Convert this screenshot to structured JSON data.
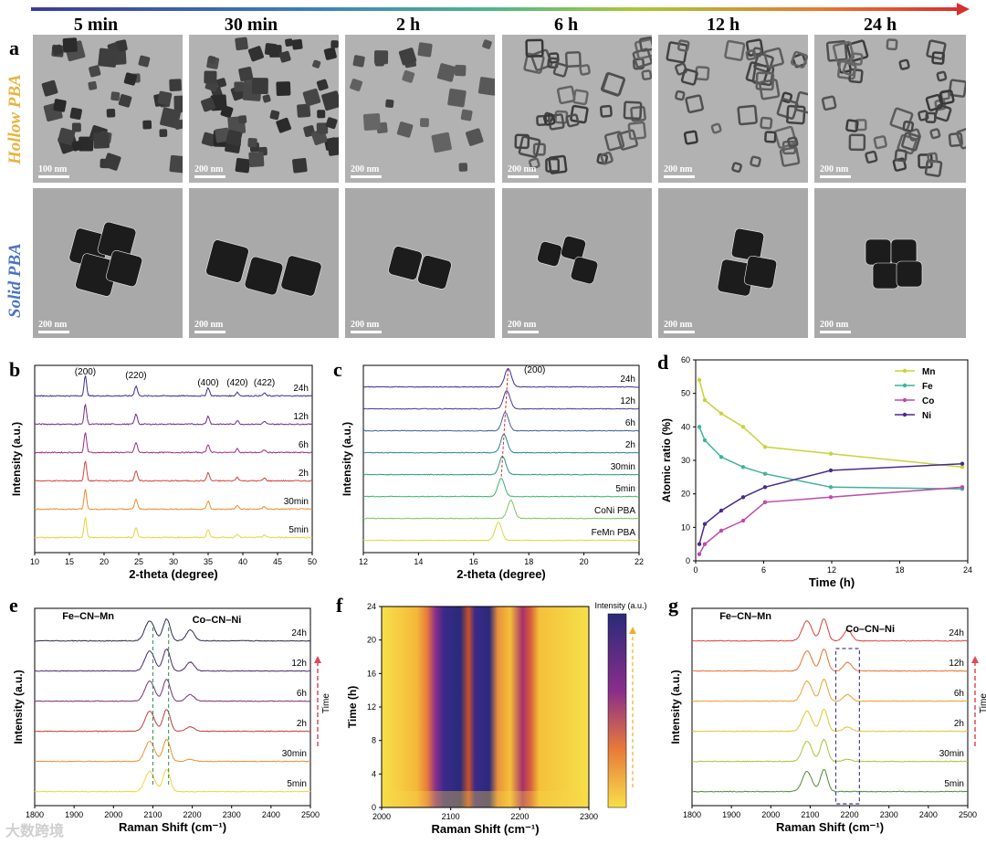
{
  "time_headers": [
    "5 min",
    "30 min",
    "2 h",
    "6 h",
    "12 h",
    "24 h"
  ],
  "panel_letters": {
    "a": "a",
    "b": "b",
    "c": "c",
    "d": "d",
    "e": "e",
    "f": "f",
    "g": "g"
  },
  "row_labels": {
    "hollow": "Hollow PBA",
    "solid": "Solid PBA"
  },
  "scale_bars": {
    "hollow": [
      "100 nm",
      "200 nm",
      "200 nm",
      "200 nm",
      "200 nm",
      "200 nm"
    ],
    "solid": [
      "200 nm",
      "200 nm",
      "200 nm",
      "200 nm",
      "200 nm",
      "200 nm"
    ]
  },
  "watermark": "大数跨境",
  "colors": {
    "hollow_label": "#e8b33a",
    "solid_label": "#4b73c2"
  },
  "chart_data": [
    {
      "id": "b",
      "type": "line",
      "xlabel": "2-theta (degree)",
      "ylabel": "Intensity (a.u.)",
      "xlim": [
        10,
        50
      ],
      "xticks": [
        "10",
        "15",
        "20",
        "25",
        "30",
        "35",
        "40",
        "45",
        "50"
      ],
      "series": [
        {
          "name": "24h",
          "color": "#3b2f8f"
        },
        {
          "name": "12h",
          "color": "#6b2d8e"
        },
        {
          "name": "6h",
          "color": "#9b2e86"
        },
        {
          "name": "2h",
          "color": "#d0453f"
        },
        {
          "name": "30min",
          "color": "#ee8a2e"
        },
        {
          "name": "5min",
          "color": "#e8d23b"
        }
      ],
      "peaks": [
        {
          "x": 17.3,
          "label": "(200)"
        },
        {
          "x": 24.6,
          "label": "(220)"
        },
        {
          "x": 35.0,
          "label": "(400)"
        },
        {
          "x": 39.2,
          "label": "(420)"
        },
        {
          "x": 43.1,
          "label": "(422)"
        }
      ]
    },
    {
      "id": "c",
      "type": "line",
      "xlabel": "2-theta (degree)",
      "ylabel": "Intensity (a.u.)",
      "xlim": [
        12,
        22
      ],
      "xticks": [
        "12",
        "14",
        "16",
        "18",
        "20",
        "22"
      ],
      "peak_label": "(200)",
      "series": [
        {
          "name": "24h",
          "color": "#3b2f8f",
          "peak": 17.25
        },
        {
          "name": "12h",
          "color": "#4a3a8c",
          "peak": 17.2
        },
        {
          "name": "6h",
          "color": "#3f5f99",
          "peak": 17.15
        },
        {
          "name": "2h",
          "color": "#2f8290",
          "peak": 17.1
        },
        {
          "name": "30min",
          "color": "#2a9a7a",
          "peak": 17.05
        },
        {
          "name": "5min",
          "color": "#3db36b",
          "peak": 17.0
        },
        {
          "name": "CoNi PBA",
          "color": "#7ec45a",
          "peak": 17.35
        },
        {
          "name": "FeMn PBA",
          "color": "#d8d83a",
          "peak": 16.9
        }
      ]
    },
    {
      "id": "d",
      "type": "line",
      "xlabel": "Time (h)",
      "ylabel": "Atomic ratio (%)",
      "xlim": [
        0,
        24
      ],
      "ylim": [
        0,
        60
      ],
      "xticks": [
        "0",
        "6",
        "12",
        "18",
        "24"
      ],
      "yticks": [
        "0",
        "10",
        "20",
        "30",
        "40",
        "50",
        "60"
      ],
      "x": [
        0,
        0.5,
        2,
        4,
        6,
        12,
        24
      ],
      "series": [
        {
          "name": "Mn",
          "color": "#c8d33a",
          "values": [
            54,
            48,
            44,
            40,
            34,
            32,
            28
          ]
        },
        {
          "name": "Fe",
          "color": "#3fb39a",
          "values": [
            40,
            36,
            31,
            28,
            26,
            22,
            21.5
          ]
        },
        {
          "name": "Co",
          "color": "#c04aa6",
          "values": [
            2,
            5,
            9,
            12,
            17.5,
            19,
            22
          ]
        },
        {
          "name": "Ni",
          "color": "#4a2a8c",
          "values": [
            5,
            11,
            15,
            19,
            22,
            27,
            29
          ]
        }
      ]
    },
    {
      "id": "e",
      "type": "line",
      "xlabel": "Raman Shift (cm⁻¹)",
      "ylabel": "Intensity (a.u.)",
      "xlim": [
        1800,
        2500
      ],
      "xticks": [
        "1800",
        "1900",
        "2000",
        "2100",
        "2200",
        "2300",
        "2400",
        "2500"
      ],
      "annotations": [
        "Fe–CN–Mn",
        "Co–CN–Ni"
      ],
      "arrow_label": "Time",
      "series": [
        {
          "name": "24h",
          "color": "#2e2e4a"
        },
        {
          "name": "12h",
          "color": "#4a2a6c"
        },
        {
          "name": "6h",
          "color": "#7a2f7a"
        },
        {
          "name": "2h",
          "color": "#c0403a"
        },
        {
          "name": "30min",
          "color": "#e8902e"
        },
        {
          "name": "5min",
          "color": "#ecd63b"
        }
      ]
    },
    {
      "id": "f",
      "type": "heatmap",
      "xlabel": "Raman Shift (cm⁻¹)",
      "ylabel": "Time (h)",
      "xlim": [
        2000,
        2300
      ],
      "ylim": [
        0,
        24
      ],
      "xticks": [
        "2000",
        "2100",
        "2200",
        "2300"
      ],
      "yticks": [
        "0",
        "4",
        "8",
        "12",
        "16",
        "20",
        "24"
      ],
      "colorbar_label": "Intensity (a.u.)"
    },
    {
      "id": "g",
      "type": "line",
      "xlabel": "Raman Shift (cm⁻¹)",
      "ylabel": "Intensity (a.u.)",
      "xlim": [
        1800,
        2500
      ],
      "xticks": [
        "1800",
        "1900",
        "2000",
        "2100",
        "2200",
        "2300",
        "2400",
        "2500"
      ],
      "annotations": [
        "Fe–CN–Mn",
        "Co–CN–Ni"
      ],
      "arrow_label": "Time",
      "series": [
        {
          "name": "24h",
          "color": "#e0403a"
        },
        {
          "name": "12h",
          "color": "#e8702e"
        },
        {
          "name": "6h",
          "color": "#eaa030"
        },
        {
          "name": "2h",
          "color": "#e6c42e"
        },
        {
          "name": "30min",
          "color": "#a8c43a"
        },
        {
          "name": "5min",
          "color": "#4f8a3a"
        }
      ]
    }
  ]
}
